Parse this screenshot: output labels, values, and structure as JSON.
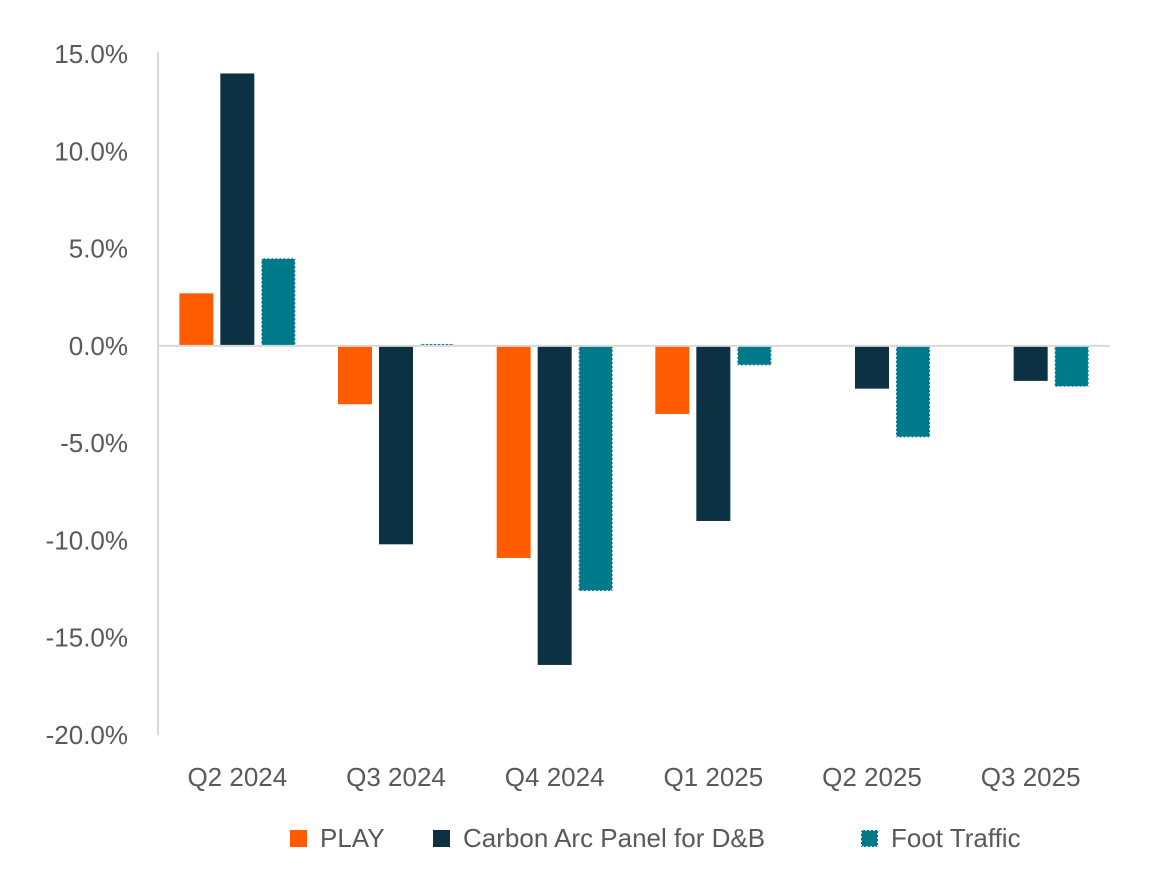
{
  "chart_data": {
    "type": "bar",
    "title": "",
    "xlabel": "",
    "ylabel": "",
    "categories": [
      "Q2 2024",
      "Q3 2024",
      "Q4 2024",
      "Q1 2025",
      "Q2 2025",
      "Q3 2025"
    ],
    "series": [
      {
        "name": "PLAY",
        "color": "#ff5b00",
        "pattern": "solid",
        "values": [
          2.7,
          -3.0,
          -10.9,
          -3.5,
          null,
          null
        ]
      },
      {
        "name": "Carbon Arc Panel for D&B",
        "color": "#0b3142",
        "pattern": "solid",
        "values": [
          14.0,
          -10.2,
          -16.4,
          -9.0,
          -2.2,
          -1.8
        ]
      },
      {
        "name": "Foot Traffic",
        "color": "#007a8a",
        "pattern": "dotted-outline",
        "values": [
          4.5,
          0.1,
          -12.6,
          -1.0,
          -4.7,
          -2.1
        ]
      }
    ],
    "ylim": [
      -20,
      15
    ],
    "yticks": [
      15,
      10,
      5,
      0,
      -5,
      -10,
      -15,
      -20
    ],
    "ytick_labels": [
      "15.0%",
      "10.0%",
      "5.0%",
      "0.0%",
      "-5.0%",
      "-10.0%",
      "-15.0%",
      "-20.0%"
    ],
    "grid": false,
    "legend_position": "bottom"
  }
}
